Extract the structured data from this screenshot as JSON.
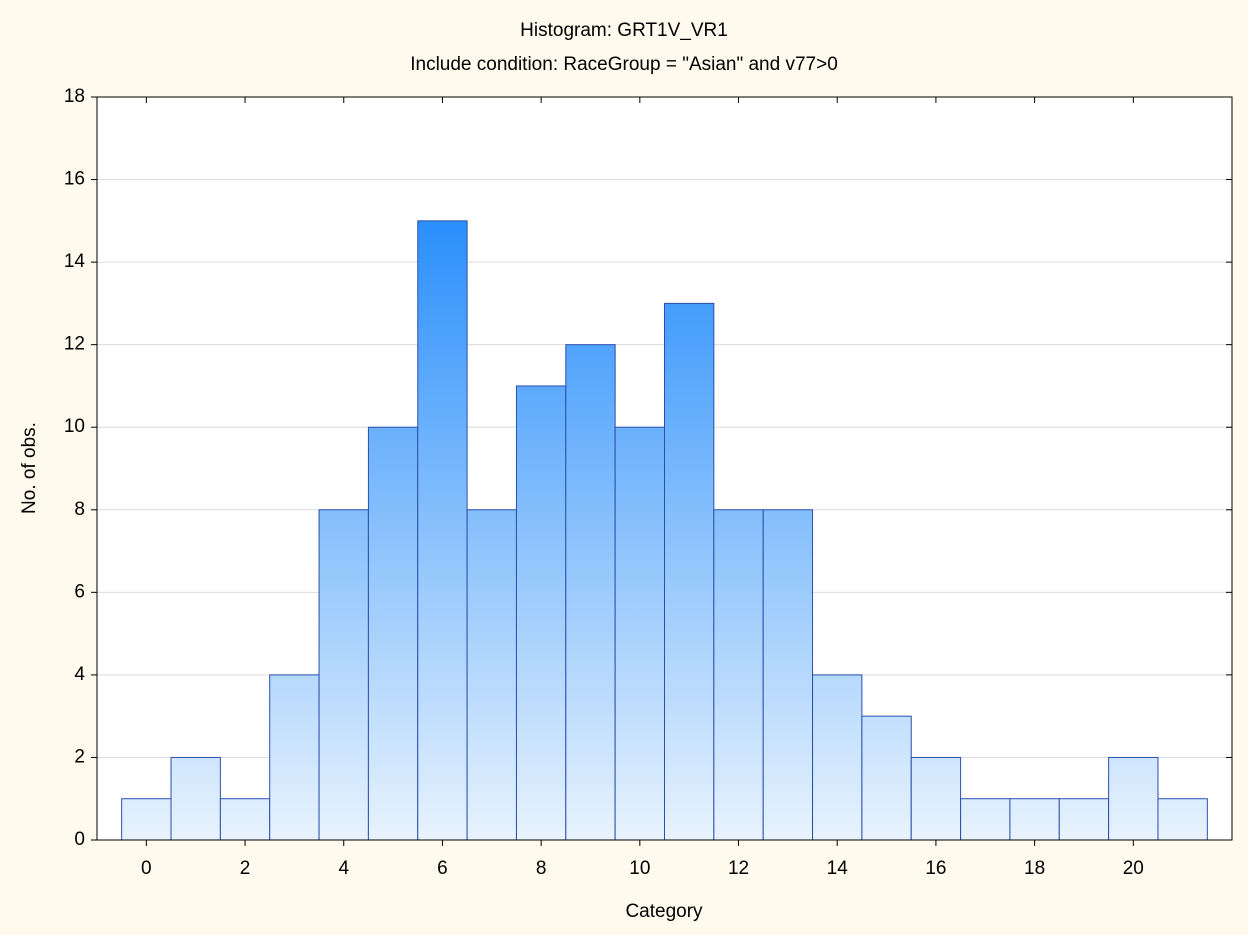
{
  "chart_data": {
    "type": "histogram",
    "title": "Histogram: GRT1V_VR1",
    "subtitle": "Include condition: RaceGroup = \"Asian\" and v77>0",
    "xlabel": "Category",
    "ylabel": "No. of obs.",
    "bins": [
      -0.5,
      0.5,
      1.5,
      2.5,
      3.5,
      4.5,
      5.5,
      6.5,
      7.5,
      8.5,
      9.5,
      10.5,
      11.5,
      12.5,
      13.5,
      14.5,
      15.5,
      16.5,
      17.5,
      18.5,
      19.5,
      20.5,
      21.5
    ],
    "values": [
      1,
      2,
      1,
      4,
      8,
      10,
      15,
      8,
      11,
      12,
      10,
      13,
      8,
      8,
      4,
      3,
      2,
      1,
      1,
      1,
      2,
      1
    ],
    "color": "#2a8ffc",
    "edgecolor": "#2b4fae",
    "xlim": [
      -1,
      22
    ],
    "xticks": [
      0,
      2,
      4,
      6,
      8,
      10,
      12,
      14,
      16,
      18,
      20
    ],
    "ylim": [
      0,
      18
    ],
    "yticks": [
      0,
      2,
      4,
      6,
      8,
      10,
      12,
      14,
      16,
      18
    ],
    "grid": true
  }
}
